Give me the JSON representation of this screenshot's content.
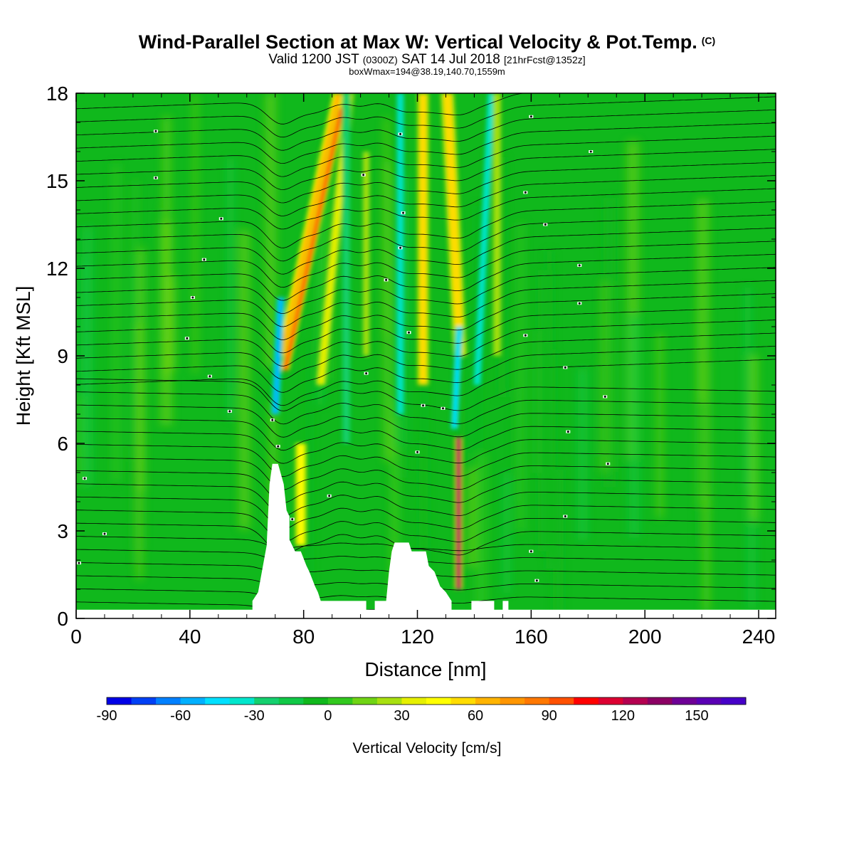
{
  "header": {
    "title": "Wind-Parallel Section at Max W: Vertical Velocity & Pot.Temp.",
    "copyright": "(C)",
    "valid_prefix": "Valid 1200 JST",
    "utc": "(0300Z)",
    "valid_date": "SAT 14 Jul 2018",
    "forecast": "[21hrFcst@1352z]",
    "boxwmax": "boxWmax=194@38.19,140.70,1559m"
  },
  "colors": {
    "background_w": "#10b81c",
    "terrain_fill": "#ffffff",
    "contour": "#000000"
  },
  "chart_data": {
    "type": "heatmap",
    "title": "Wind-Parallel Section at Max W: Vertical Velocity & Pot.Temp.",
    "xlabel": "Distance [nm]",
    "ylabel": "Height [Kft MSL]",
    "x_ticks": [
      "0",
      "40",
      "80",
      "120",
      "160",
      "200",
      "240"
    ],
    "y_ticks": [
      "0",
      "3",
      "6",
      "9",
      "12",
      "15",
      "18"
    ],
    "xlim": [
      0,
      246
    ],
    "ylim": [
      0,
      18
    ],
    "colorbar": {
      "label": "Vertical Velocity [cm/s]",
      "range": [
        -90,
        170
      ],
      "step": 10,
      "tick_labels": [
        "-90",
        "-60",
        "-30",
        "0",
        "30",
        "60",
        "90",
        "120",
        "150"
      ],
      "tick_values": [
        -90,
        -60,
        -30,
        0,
        30,
        60,
        90,
        120,
        150
      ],
      "colors": [
        "#0000e6",
        "#0040f5",
        "#0080ff",
        "#00b0ff",
        "#00e0ff",
        "#00e6cc",
        "#14d06e",
        "#10c846",
        "#10b81c",
        "#32c81e",
        "#70d414",
        "#a8e010",
        "#e6f000",
        "#ffff00",
        "#ffdc00",
        "#ffb400",
        "#ff9600",
        "#ff7800",
        "#ff5000",
        "#ff0000",
        "#dc0032",
        "#b40050",
        "#8c0064",
        "#6e0096",
        "#5a00b4",
        "#4600c8"
      ]
    },
    "terrain_profile_kft": [
      [
        0,
        0.3
      ],
      [
        62,
        0.3
      ],
      [
        62,
        0.6
      ],
      [
        64,
        0.9
      ],
      [
        67,
        2.5
      ],
      [
        68,
        4.6
      ],
      [
        69,
        5.3
      ],
      [
        71,
        5.3
      ],
      [
        73,
        4.6
      ],
      [
        74,
        3.7
      ],
      [
        75,
        3.5
      ],
      [
        75,
        2.7
      ],
      [
        77,
        2.3
      ],
      [
        79,
        2.3
      ],
      [
        81,
        1.8
      ],
      [
        82,
        1.6
      ],
      [
        84,
        1.1
      ],
      [
        85,
        0.9
      ],
      [
        86,
        0.6
      ],
      [
        102,
        0.6
      ],
      [
        102,
        0.3
      ],
      [
        105,
        0.3
      ],
      [
        105,
        0.6
      ],
      [
        109,
        0.6
      ],
      [
        110,
        1.6
      ],
      [
        111,
        2.3
      ],
      [
        112,
        2.6
      ],
      [
        117,
        2.6
      ],
      [
        118,
        2.3
      ],
      [
        123,
        2.3
      ],
      [
        124,
        1.8
      ],
      [
        126,
        1.6
      ],
      [
        128,
        1.1
      ],
      [
        130,
        0.9
      ],
      [
        132,
        0.6
      ],
      [
        132,
        0.3
      ],
      [
        139,
        0.3
      ],
      [
        139,
        0.6
      ],
      [
        147,
        0.6
      ],
      [
        147,
        0.3
      ],
      [
        150,
        0.3
      ],
      [
        150,
        0.6
      ],
      [
        152,
        0.6
      ],
      [
        152,
        0.3
      ],
      [
        246,
        0.3
      ]
    ],
    "w_bands_cms": [
      {
        "x": 72.5,
        "width_nm": 2.2,
        "y_from": 9,
        "y_to": 18,
        "w": 65,
        "slant": 0.22
      },
      {
        "x": 73.5,
        "width_nm": 1.4,
        "y_from": 8.5,
        "y_to": 17.5,
        "w": 95,
        "slant": 0.22
      },
      {
        "x": 79,
        "width_nm": 2.4,
        "y_from": 2.5,
        "y_to": 6,
        "w": 45,
        "slant": 0
      },
      {
        "x": 86,
        "width_nm": 2.2,
        "y_from": 8,
        "y_to": 18,
        "w": 30,
        "slant": 0.1
      },
      {
        "x": 95,
        "width_nm": 1.8,
        "y_from": 6,
        "y_to": 18,
        "w": -25,
        "slant": 0
      },
      {
        "x": 102,
        "width_nm": 1.5,
        "y_from": 9,
        "y_to": 16,
        "w": 25,
        "slant": 0
      },
      {
        "x": 114,
        "width_nm": 1.8,
        "y_from": 7,
        "y_to": 18,
        "w": -35,
        "slant": 0
      },
      {
        "x": 122,
        "width_nm": 2.4,
        "y_from": 8,
        "y_to": 18,
        "w": 50,
        "slant": 0
      },
      {
        "x": 135,
        "width_nm": 2.8,
        "y_from": 9,
        "y_to": 18,
        "w": 50,
        "slant": -0.05
      },
      {
        "x": 141,
        "width_nm": 1.8,
        "y_from": 8,
        "y_to": 18,
        "w": -40,
        "slant": 0.05
      },
      {
        "x": 134.5,
        "width_nm": 1.3,
        "y_from": 1.0,
        "y_to": 6.2,
        "w": 130,
        "slant": 0
      },
      {
        "x": 148,
        "width_nm": 1.8,
        "y_from": 9,
        "y_to": 18,
        "w": 25,
        "slant": 0
      },
      {
        "x": 70,
        "width_nm": 1.6,
        "y_from": 7,
        "y_to": 11,
        "w": -60,
        "slant": 0.05
      },
      {
        "x": 133,
        "width_nm": 1.6,
        "y_from": 6.5,
        "y_to": 10,
        "w": -50,
        "slant": 0.05
      }
    ],
    "contour_labels": [
      {
        "x": 28,
        "y": 16.7
      },
      {
        "x": 28,
        "y": 15.1
      },
      {
        "x": 51,
        "y": 13.7
      },
      {
        "x": 45,
        "y": 12.3
      },
      {
        "x": 41,
        "y": 11.0
      },
      {
        "x": 39,
        "y": 9.6
      },
      {
        "x": 47,
        "y": 8.3
      },
      {
        "x": 54,
        "y": 7.1
      },
      {
        "x": 3,
        "y": 4.8
      },
      {
        "x": 10,
        "y": 2.9
      },
      {
        "x": 1,
        "y": 1.9
      },
      {
        "x": 76,
        "y": 3.4
      },
      {
        "x": 89,
        "y": 4.2
      },
      {
        "x": 101,
        "y": 15.2
      },
      {
        "x": 114,
        "y": 16.6
      },
      {
        "x": 115,
        "y": 13.9
      },
      {
        "x": 114,
        "y": 12.7
      },
      {
        "x": 109,
        "y": 11.6
      },
      {
        "x": 117,
        "y": 9.8
      },
      {
        "x": 102,
        "y": 8.4
      },
      {
        "x": 122,
        "y": 7.3
      },
      {
        "x": 120,
        "y": 5.7
      },
      {
        "x": 129,
        "y": 7.2
      },
      {
        "x": 160,
        "y": 17.2
      },
      {
        "x": 181,
        "y": 16.0
      },
      {
        "x": 158,
        "y": 14.6
      },
      {
        "x": 165,
        "y": 13.5
      },
      {
        "x": 177,
        "y": 12.1
      },
      {
        "x": 177,
        "y": 10.8
      },
      {
        "x": 158,
        "y": 9.7
      },
      {
        "x": 172,
        "y": 8.6
      },
      {
        "x": 186,
        "y": 7.6
      },
      {
        "x": 173,
        "y": 6.4
      },
      {
        "x": 187,
        "y": 5.3
      },
      {
        "x": 172,
        "y": 3.5
      },
      {
        "x": 160,
        "y": 2.3
      },
      {
        "x": 162,
        "y": 1.3
      },
      {
        "x": 71,
        "y": 5.9
      },
      {
        "x": 69,
        "y": 6.8
      }
    ]
  }
}
